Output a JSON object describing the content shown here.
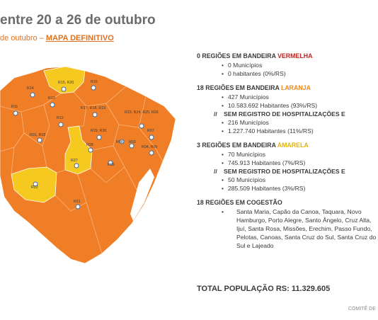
{
  "header": {
    "title": "entre 20 a 26 de outubro",
    "subtitle_prefix": "de outubro – ",
    "subtitle_bold": "MAPA DEFINITIVO"
  },
  "map": {
    "labels": [
      "R15, R20",
      "R16",
      "R14",
      "R13",
      "R11",
      "R12",
      "R17, R18, R19",
      "R23, R24, R25, R26",
      "R01, R02",
      "R29, R30",
      "R08",
      "R07",
      "R03",
      "R28",
      "R27",
      "R04, R05",
      "R09",
      "R22",
      "R21"
    ],
    "colors": {
      "orange": "#f07e26",
      "yellow": "#f6c920",
      "marker": "#ffffff"
    }
  },
  "panel": {
    "red": {
      "title_prefix": "0 REGIÕES EM BANDEIRA ",
      "title_color": "VERMELHA",
      "items": [
        "0 Municípios",
        "0 habitantes (0%/RS)"
      ]
    },
    "orange": {
      "title_prefix": "18 REGIÕES EM BANDEIRA ",
      "title_color": "LARANJA",
      "items": [
        "427 Municípios",
        "10.583.692 Habitantes (93%/RS)"
      ],
      "sub_title": "SEM REGISTRO DE HOSPITALIZAÇÕES E",
      "sub_items": [
        "216 Municípios",
        "1.227.740  Habitantes (11%/RS)"
      ]
    },
    "yellow": {
      "title_prefix": "3 REGIÕES EM BANDEIRA ",
      "title_color": "AMARELA",
      "items": [
        "70 Municípios",
        "745.913 Habitantes (7%/RS)"
      ],
      "sub_title": "SEM REGISTRO DE HOSPITALIZAÇÕES E",
      "sub_items": [
        "50 Municípios",
        "285.509 Habitantes (3%/RS)"
      ]
    },
    "cogestao": {
      "title": "18 REGIÕES EM COGESTÃO",
      "text": "Santa Maria, Capão da Canoa, Taquara, Novo Hamburgo, Porto Alegre, Santo Ângelo, Cruz Alta, Ijuí, Santa Rosa, Missões, Erechim, Passo Fundo, Pelotas, Canoas, Santa Cruz do Sul, Santa Cruz do Sul e Lajeado"
    }
  },
  "total": "TOTAL POPULAÇÃO RS: 11.329.605",
  "footer": "COMITÊ DE"
}
